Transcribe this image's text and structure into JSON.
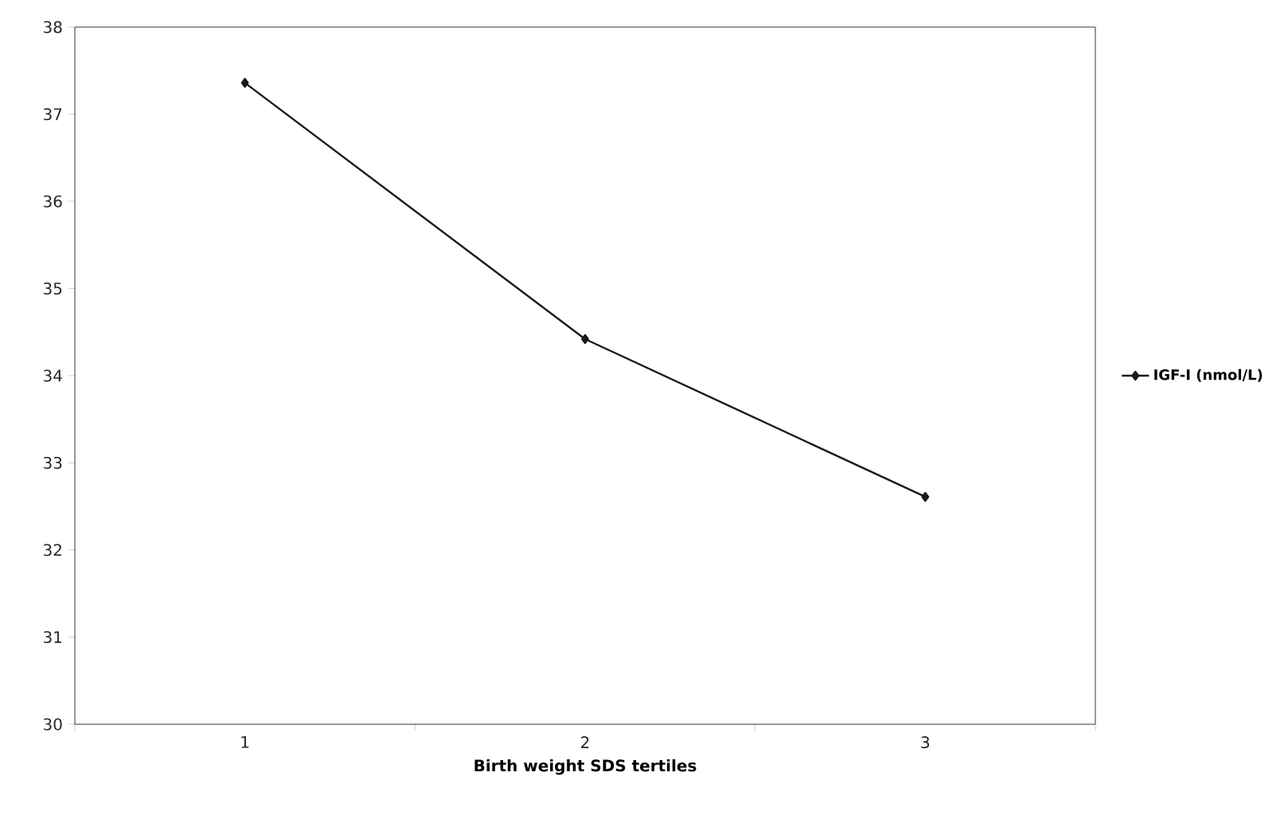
{
  "chart_data": {
    "type": "line",
    "xlabel": "Birth weight SDS tertiles",
    "categories": [
      "1",
      "2",
      "3"
    ],
    "series": [
      {
        "name": "IGF-I (nmol/L)",
        "color": "#1a1a1a",
        "values": [
          37.36,
          34.42,
          32.61
        ]
      }
    ],
    "ylim": [
      30,
      38
    ],
    "yticks": [
      30,
      31,
      32,
      33,
      34,
      35,
      36,
      37,
      38
    ],
    "marker": "diamond",
    "legend": "right",
    "grid": false
  }
}
